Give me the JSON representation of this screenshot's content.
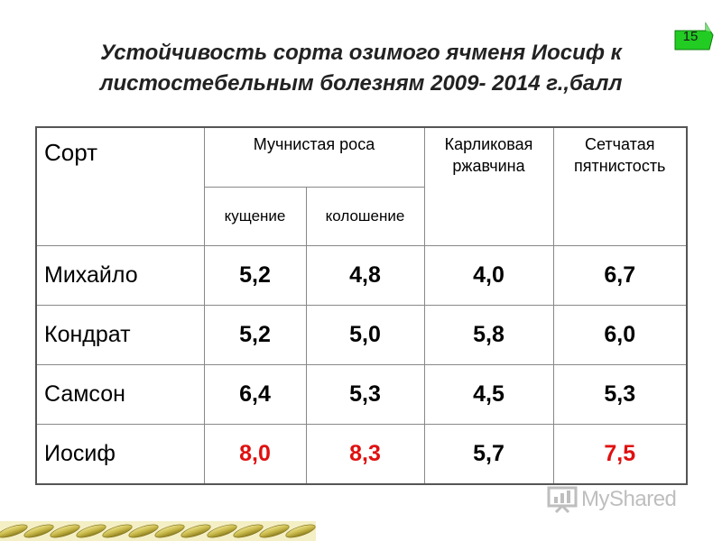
{
  "title": {
    "line1": "Устойчивость сорта озимого ячменя Иосиф к",
    "line2": "листостебельным болезням 2009- 2014 г.,балл"
  },
  "page_number": "15",
  "colors": {
    "highlight": "#e01010",
    "badge": "#22cc22"
  },
  "table": {
    "header": {
      "sort": "Сорт",
      "mildew": "Мучнистая роса",
      "tillering": "кущение",
      "heading": "колошение",
      "rust": "Карликовая ржавчина",
      "spot": "Сетчатая пятнистость"
    },
    "rows": [
      {
        "name": "Михайло",
        "values": [
          "5,2",
          "4,8",
          "4,0",
          "6,7"
        ]
      },
      {
        "name": "Кондрат",
        "values": [
          "5,2",
          "5,0",
          "5,8",
          "6,0"
        ]
      },
      {
        "name": "Самсон",
        "values": [
          "6,4",
          "5,3",
          "4,5",
          "5,3"
        ]
      },
      {
        "name": "Иосиф",
        "values": [
          "8,0",
          "8,3",
          "5,7",
          "7,5"
        ]
      }
    ]
  },
  "watermark": {
    "text": "MyShared",
    "icon": "presentation-board-icon"
  },
  "decor": {
    "icon": "wheat-ears-strip"
  }
}
